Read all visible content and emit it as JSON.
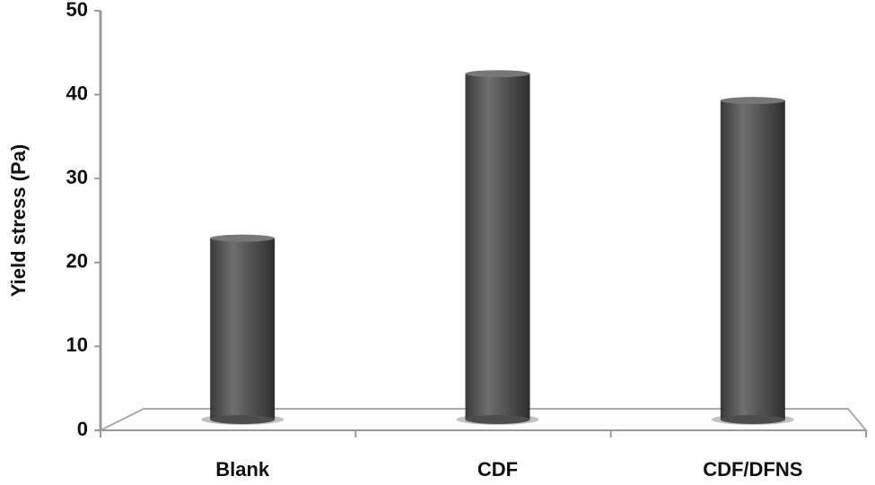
{
  "chart_data": {
    "type": "bar",
    "y_label": "Yield stress (Pa)",
    "categories": [
      "Blank",
      "CDF",
      "CDF/DFNS"
    ],
    "values": [
      22.9,
      42.5,
      39.3
    ],
    "color": "#4d4d4d",
    "ylim": [
      0,
      50
    ],
    "yticks": [
      0,
      10,
      20,
      30,
      40,
      50
    ],
    "grid": false
  }
}
